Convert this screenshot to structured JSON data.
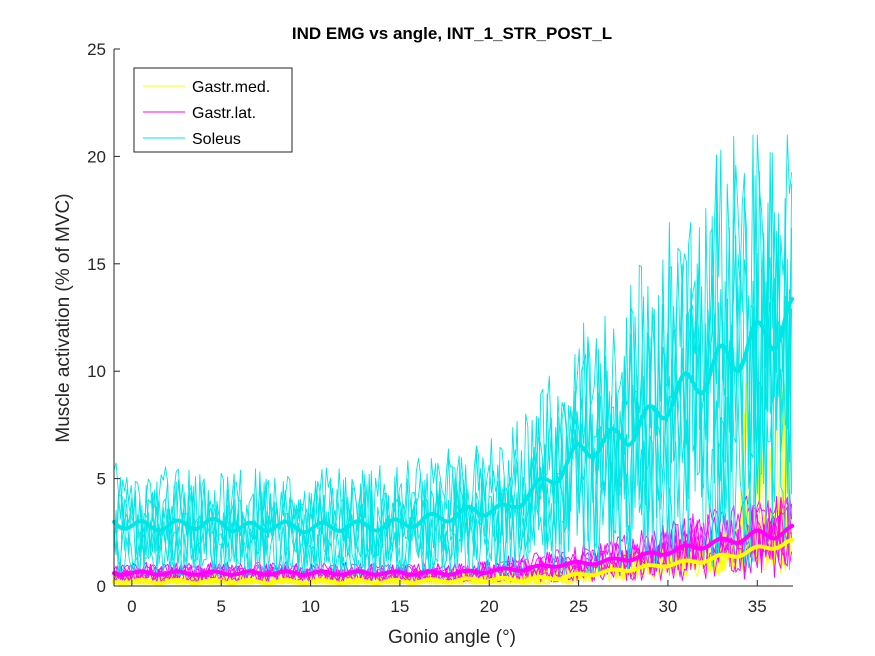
{
  "chart_data": {
    "type": "line",
    "title": "IND EMG vs angle, INT_1_STR_POST_L",
    "xlabel": "Gonio angle (°)",
    "ylabel": "Muscle activation (% of MVC)",
    "xlim": [
      -1,
      37
    ],
    "ylim": [
      0,
      25
    ],
    "xticks": [
      "0",
      "5",
      "10",
      "15",
      "20",
      "25",
      "30",
      "35"
    ],
    "yticks": [
      "0",
      "5",
      "10",
      "15",
      "20",
      "25"
    ],
    "grid": false,
    "legend_position": "top-left",
    "series": [
      {
        "name": "Gastr.med.",
        "color": "#FFFF00",
        "mean": {
          "x": [
            -1,
            5,
            10,
            15,
            20,
            22,
            24,
            26,
            28,
            30,
            32,
            34,
            35,
            36,
            37
          ],
          "y": [
            0.2,
            0.2,
            0.2,
            0.2,
            0.3,
            0.3,
            0.4,
            0.6,
            0.8,
            1.0,
            1.2,
            1.5,
            1.7,
            1.9,
            2.0
          ]
        },
        "trial_band": {
          "low": 0.1,
          "high": 9.5
        }
      },
      {
        "name": "Gastr.lat.",
        "color": "#FF00FF",
        "mean": {
          "x": [
            -1,
            5,
            10,
            15,
            18,
            20,
            22,
            24,
            26,
            28,
            30,
            32,
            34,
            35,
            36,
            37
          ],
          "y": [
            0.6,
            0.6,
            0.6,
            0.6,
            0.6,
            0.7,
            0.8,
            1.0,
            1.1,
            1.3,
            1.6,
            1.9,
            2.2,
            2.4,
            2.4,
            2.6
          ]
        },
        "trial_band": {
          "low": 0.2,
          "high": 4.5
        }
      },
      {
        "name": "Soleus",
        "color": "#00E5E5",
        "mean": {
          "x": [
            -1,
            0,
            2,
            4,
            5,
            6,
            8,
            10,
            12,
            14,
            16,
            18,
            20,
            21,
            22,
            23,
            24,
            25,
            26,
            27,
            28,
            29,
            30,
            31,
            32,
            33,
            34,
            35,
            36,
            37
          ],
          "y": [
            3.0,
            2.8,
            2.8,
            2.9,
            2.9,
            2.7,
            2.8,
            2.7,
            2.8,
            2.8,
            3.0,
            3.3,
            3.6,
            3.5,
            4.2,
            4.7,
            5.4,
            6.2,
            6.6,
            6.8,
            7.2,
            7.8,
            8.6,
            9.2,
            9.8,
            10.4,
            10.9,
            11.4,
            12.0,
            12.4
          ]
        },
        "trial_band": {
          "low": 0.5,
          "high": 21.0
        }
      }
    ]
  }
}
